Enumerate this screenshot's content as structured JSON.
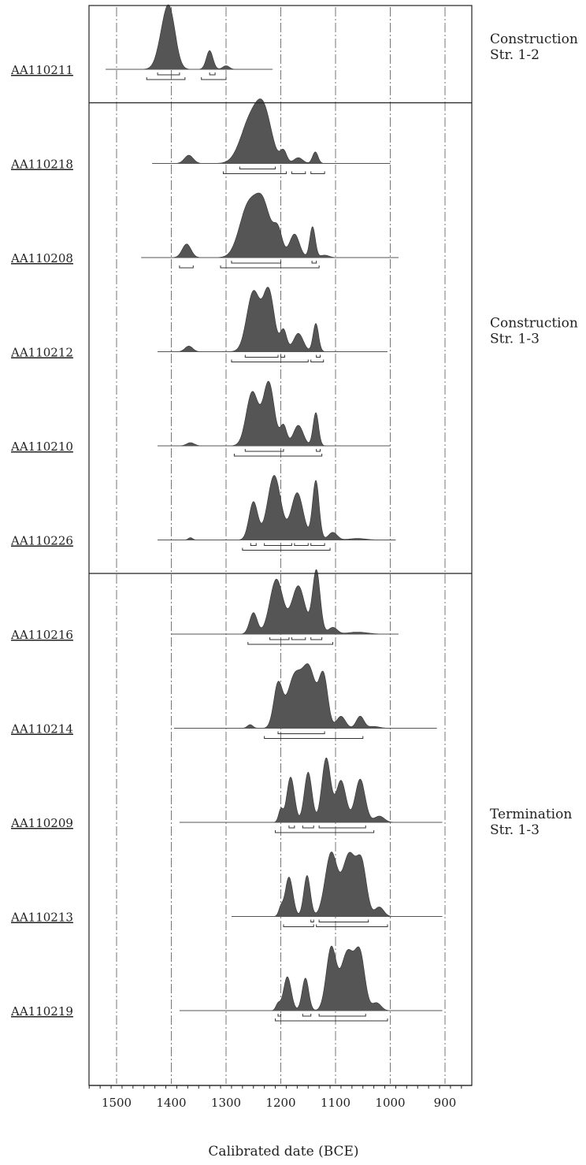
{
  "chart_data": {
    "type": "area",
    "xlabel": "Calibrated date (BCE)",
    "x_reversed": true,
    "xlim": [
      1550,
      850
    ],
    "x_ticks": [
      1500,
      1400,
      1300,
      1200,
      1100,
      1000,
      900
    ],
    "x_tick_labels": [
      "1500",
      "1400",
      "1300",
      "1200",
      "1100",
      "1000",
      "900"
    ],
    "grid": "dashed vertical lines every 100 years",
    "groups": [
      {
        "label_lines": [
          "Construction",
          "Str. 1-2"
        ],
        "samples": [
          0
        ]
      },
      {
        "label_lines": [
          "Construction",
          "Str. 1-3"
        ],
        "samples": [
          1,
          2,
          3,
          4,
          5
        ]
      },
      {
        "label_lines": [
          "Termination",
          "Str. 1-3"
        ],
        "samples": [
          6,
          7,
          8,
          9,
          10
        ]
      }
    ],
    "series": [
      {
        "name": "AA110211",
        "baseline_range": [
          1520,
          1215
        ],
        "peaks": [
          [
            1410,
            1.0,
            12
          ],
          [
            1400,
            0.6,
            10
          ],
          [
            1330,
            0.42,
            6
          ],
          [
            1300,
            0.08,
            6
          ]
        ],
        "range_68": [
          [
            1425,
            1385
          ],
          [
            1330,
            1320
          ]
        ],
        "range_95": [
          [
            1445,
            1375
          ],
          [
            1345,
            1300
          ]
        ]
      },
      {
        "name": "AA110218",
        "baseline_range": [
          1435,
          1000
        ],
        "peaks": [
          [
            1368,
            0.17,
            8
          ],
          [
            1255,
            0.9,
            18
          ],
          [
            1230,
            0.9,
            14
          ],
          [
            1195,
            0.25,
            6
          ],
          [
            1168,
            0.12,
            8
          ],
          [
            1137,
            0.24,
            5
          ]
        ],
        "range_68": [
          [
            1275,
            1210
          ]
        ],
        "range_95": [
          [
            1305,
            1190
          ],
          [
            1180,
            1155
          ],
          [
            1145,
            1120
          ]
        ]
      },
      {
        "name": "AA110208",
        "baseline_range": [
          1455,
          985
        ],
        "peaks": [
          [
            1372,
            0.22,
            8
          ],
          [
            1260,
            0.8,
            16
          ],
          [
            1232,
            0.8,
            14
          ],
          [
            1205,
            0.4,
            8
          ],
          [
            1175,
            0.38,
            9
          ],
          [
            1142,
            0.5,
            5
          ],
          [
            1120,
            0.04,
            8
          ]
        ],
        "range_68": [
          [
            1290,
            1200
          ],
          [
            1143,
            1135
          ]
        ],
        "range_95": [
          [
            1385,
            1360
          ],
          [
            1310,
            1130
          ]
        ]
      },
      {
        "name": "AA110212",
        "baseline_range": [
          1425,
          1005
        ],
        "peaks": [
          [
            1368,
            0.08,
            7
          ],
          [
            1250,
            0.85,
            12
          ],
          [
            1222,
            0.85,
            10
          ],
          [
            1195,
            0.3,
            6
          ],
          [
            1168,
            0.26,
            9
          ],
          [
            1136,
            0.4,
            5
          ]
        ],
        "range_68": [
          [
            1265,
            1205
          ],
          [
            1200,
            1193
          ],
          [
            1135,
            1128
          ]
        ],
        "range_95": [
          [
            1290,
            1150
          ],
          [
            1145,
            1122
          ]
        ]
      },
      {
        "name": "AA110210",
        "baseline_range": [
          1425,
          1000
        ],
        "peaks": [
          [
            1365,
            0.04,
            7
          ],
          [
            1252,
            0.68,
            11
          ],
          [
            1222,
            0.8,
            10
          ],
          [
            1195,
            0.25,
            6
          ],
          [
            1168,
            0.26,
            9
          ],
          [
            1136,
            0.42,
            5
          ]
        ],
        "range_68": [
          [
            1265,
            1195
          ],
          [
            1135,
            1128
          ]
        ],
        "range_95": [
          [
            1285,
            1125
          ]
        ]
      },
      {
        "name": "AA110226",
        "baseline_range": [
          1425,
          990
        ],
        "peaks": [
          [
            1365,
            0.03,
            4
          ],
          [
            1250,
            0.5,
            8
          ],
          [
            1212,
            0.85,
            12
          ],
          [
            1170,
            0.62,
            11
          ],
          [
            1136,
            0.78,
            6
          ],
          [
            1105,
            0.1,
            8
          ],
          [
            1060,
            0.02,
            15
          ]
        ],
        "range_68": [
          [
            1255,
            1245
          ],
          [
            1230,
            1180
          ],
          [
            1175,
            1150
          ],
          [
            1145,
            1120
          ]
        ],
        "range_95": [
          [
            1270,
            1110
          ]
        ]
      },
      {
        "name": "AA110216",
        "baseline_range": [
          1400,
          985
        ],
        "peaks": [
          [
            1250,
            0.32,
            7
          ],
          [
            1208,
            0.82,
            12
          ],
          [
            1168,
            0.72,
            12
          ],
          [
            1135,
            0.95,
            7
          ],
          [
            1105,
            0.1,
            8
          ],
          [
            1060,
            0.03,
            18
          ]
        ],
        "range_68": [
          [
            1220,
            1185
          ],
          [
            1180,
            1155
          ],
          [
            1145,
            1125
          ]
        ],
        "range_95": [
          [
            1260,
            1105
          ]
        ]
      },
      {
        "name": "AA110214",
        "baseline_range": [
          1395,
          915
        ],
        "peaks": [
          [
            1256,
            0.06,
            5
          ],
          [
            1205,
            0.72,
            8
          ],
          [
            1175,
            0.85,
            13
          ],
          [
            1148,
            0.95,
            12
          ],
          [
            1122,
            0.85,
            8
          ],
          [
            1090,
            0.2,
            8
          ],
          [
            1055,
            0.2,
            7
          ],
          [
            1030,
            0.03,
            10
          ]
        ],
        "range_68": [
          [
            1205,
            1120
          ]
        ],
        "range_95": [
          [
            1230,
            1050
          ]
        ]
      },
      {
        "name": "AA110209",
        "baseline_range": [
          1385,
          905
        ],
        "peaks": [
          [
            1200,
            0.18,
            4
          ],
          [
            1182,
            0.65,
            7
          ],
          [
            1150,
            0.72,
            7
          ],
          [
            1117,
            0.92,
            8
          ],
          [
            1090,
            0.6,
            9
          ],
          [
            1055,
            0.62,
            9
          ],
          [
            1020,
            0.09,
            9
          ]
        ],
        "range_68": [
          [
            1185,
            1175
          ],
          [
            1160,
            1140
          ],
          [
            1130,
            1045
          ]
        ],
        "range_95": [
          [
            1210,
            1030
          ]
        ]
      },
      {
        "name": "AA110213",
        "baseline_range": [
          1290,
          905
        ],
        "peaks": [
          [
            1200,
            0.1,
            4
          ],
          [
            1185,
            0.5,
            7
          ],
          [
            1152,
            0.52,
            6
          ],
          [
            1108,
            0.8,
            11
          ],
          [
            1075,
            0.78,
            12
          ],
          [
            1052,
            0.62,
            9
          ],
          [
            1020,
            0.12,
            8
          ]
        ],
        "range_68": [
          [
            1145,
            1140
          ],
          [
            1130,
            1040
          ]
        ],
        "range_95": [
          [
            1195,
            1140
          ],
          [
            1135,
            1005
          ]
        ]
      },
      {
        "name": "AA110219",
        "baseline_range": [
          1385,
          905
        ],
        "peaks": [
          [
            1205,
            0.1,
            4
          ],
          [
            1188,
            0.52,
            7
          ],
          [
            1155,
            0.5,
            6
          ],
          [
            1108,
            0.95,
            9
          ],
          [
            1078,
            0.9,
            12
          ],
          [
            1055,
            0.8,
            9
          ],
          [
            1025,
            0.12,
            8
          ]
        ],
        "range_68": [
          [
            1205,
            1200
          ],
          [
            1160,
            1145
          ],
          [
            1130,
            1045
          ]
        ],
        "range_95": [
          [
            1210,
            1005
          ]
        ]
      }
    ]
  }
}
